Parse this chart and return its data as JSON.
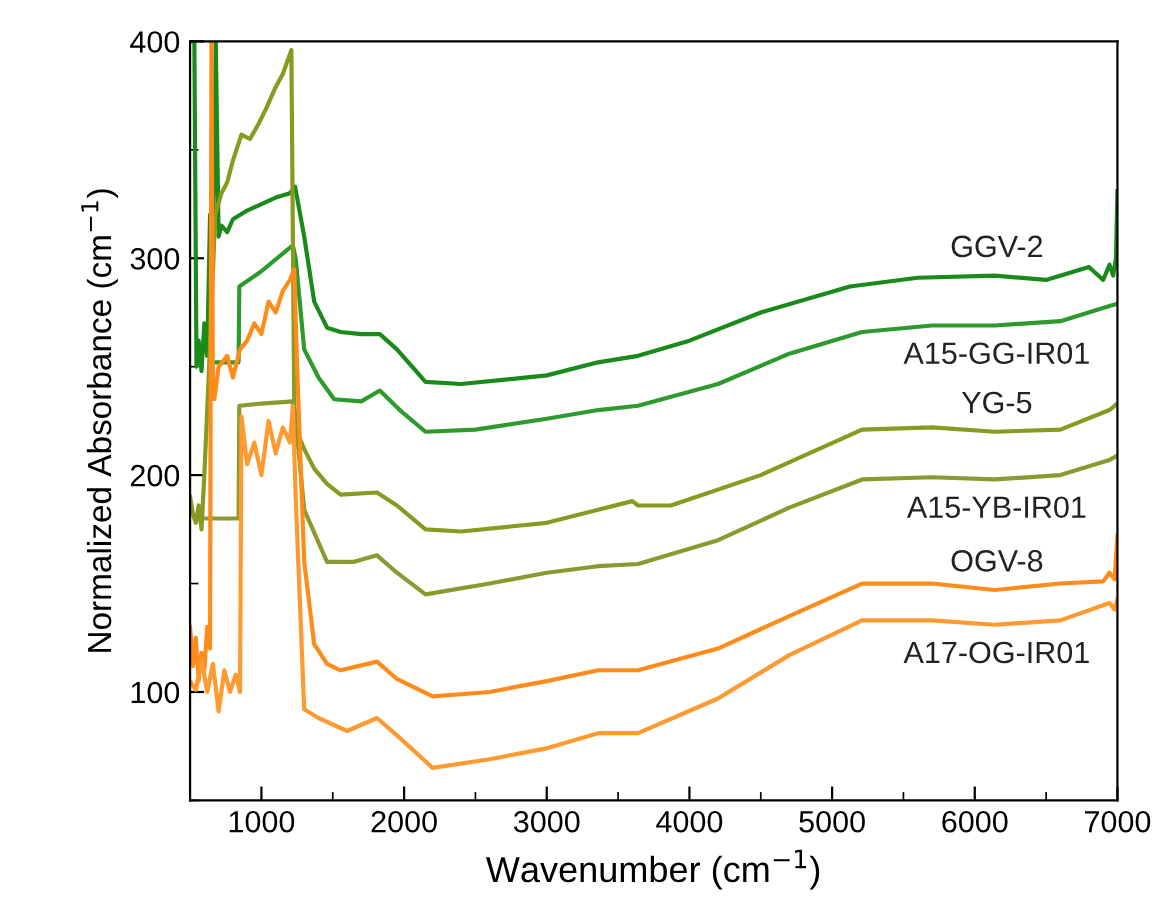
{
  "chart_data": {
    "type": "line",
    "xlabel": "Wavenumber (cm$^{−1}$)",
    "ylabel": "Normalized Absorbance (cm$^{−1}$)",
    "xlim": [
      500,
      7000
    ],
    "ylim": [
      50,
      400
    ],
    "xticks": [
      1000,
      2000,
      3000,
      4000,
      5000,
      6000,
      7000
    ],
    "yticks": [
      100,
      200,
      300,
      400
    ],
    "grid": false,
    "legend": false,
    "marker": "none",
    "line_style": "solid",
    "series": [
      {
        "name": "GGV-2",
        "color": "#1a8a1a",
        "x": [
          500,
          530,
          545,
          560,
          580,
          600,
          620,
          640,
          660,
          680,
          700,
          720,
          760,
          800,
          900,
          1000,
          1100,
          1200,
          1236,
          1300,
          1370,
          1460,
          1555,
          1700,
          1830,
          1950,
          2150,
          2400,
          3000,
          3360,
          3640,
          4000,
          4500,
          5125,
          5600,
          6140,
          6500,
          6800,
          6900,
          6944,
          6970,
          6990,
          7000
        ],
        "values": [
          400,
          400,
          250,
          262,
          248,
          270,
          255,
          320,
          300,
          400,
          310,
          315,
          312,
          318,
          322,
          325,
          328,
          330,
          333,
          310,
          280,
          268,
          266,
          265,
          265,
          258,
          243,
          242,
          246,
          252,
          255,
          262,
          275,
          287,
          291,
          292,
          290,
          296,
          290,
          297,
          292,
          300,
          331
        ]
      },
      {
        "name": "A15-GG-IR01",
        "color": "#2e9a2e",
        "x": [
          650,
          676,
          840,
          845,
          1000,
          1220,
          1240,
          1300,
          1400,
          1510,
          1700,
          1830,
          1970,
          2150,
          2500,
          3000,
          3360,
          3640,
          4200,
          4700,
          5210,
          5700,
          6140,
          6600,
          6944,
          7000
        ],
        "values": [
          252,
          252,
          252,
          287,
          294,
          306,
          300,
          258,
          245,
          235,
          234,
          239,
          230,
          220,
          221,
          226,
          230,
          232,
          242,
          256,
          266,
          269,
          269,
          271,
          278,
          279
        ]
      },
      {
        "name": "YG-5",
        "color": "#8a9a20",
        "x": [
          500,
          520,
          540,
          560,
          580,
          600,
          640,
          676,
          720,
          760,
          800,
          860,
          920,
          980,
          1040,
          1093,
          1150,
          1210,
          1230,
          1250,
          1300,
          1370,
          1460,
          1555,
          1810,
          1950,
          2150,
          2400,
          3000,
          3360,
          3600,
          3640,
          3870,
          4500,
          5210,
          5700,
          6140,
          6600,
          6944,
          7000
        ],
        "values": [
          190,
          182,
          178,
          186,
          175,
          200,
          260,
          320,
          330,
          335,
          345,
          357,
          355,
          362,
          370,
          378,
          385,
          396,
          232,
          220,
          212,
          203,
          196,
          191,
          192,
          186,
          175,
          174,
          178,
          184,
          188,
          186,
          186,
          200,
          221,
          222,
          220,
          221,
          230,
          233
        ]
      },
      {
        "name": "A15-YB-IR01",
        "color": "#8a9a30",
        "x": [
          600,
          840,
          845,
          1000,
          1220,
          1240,
          1300,
          1460,
          1650,
          1810,
          1950,
          2150,
          2600,
          3000,
          3360,
          3640,
          4200,
          4700,
          5210,
          5700,
          6140,
          6600,
          6944,
          7000
        ],
        "values": [
          180,
          180,
          232,
          233,
          234,
          225,
          184,
          160,
          160,
          163,
          155,
          145,
          150,
          155,
          158,
          159,
          170,
          185,
          198,
          199,
          198,
          200,
          207,
          209
        ]
      },
      {
        "name": "OGV-8",
        "color": "#ff8c1a",
        "x": [
          500,
          520,
          540,
          560,
          580,
          600,
          620,
          640,
          650,
          660,
          670,
          700,
          760,
          800,
          850,
          900,
          950,
          1000,
          1050,
          1100,
          1150,
          1200,
          1230,
          1250,
          1300,
          1370,
          1460,
          1555,
          1810,
          1950,
          2200,
          2600,
          3000,
          3360,
          3640,
          4200,
          4700,
          5210,
          5700,
          6140,
          6600,
          6900,
          6944,
          6980,
          7000
        ],
        "values": [
          130,
          112,
          125,
          105,
          118,
          110,
          130,
          120,
          400,
          240,
          235,
          250,
          255,
          245,
          258,
          262,
          270,
          265,
          280,
          275,
          285,
          290,
          295,
          250,
          160,
          122,
          113,
          110,
          114,
          106,
          98,
          100,
          105,
          110,
          110,
          120,
          135,
          150,
          150,
          147,
          150,
          151,
          155,
          152,
          172
        ]
      },
      {
        "name": "A17-OG-IR01",
        "color": "#ff9a30",
        "x": [
          500,
          540,
          580,
          620,
          660,
          700,
          740,
          780,
          820,
          850,
          860,
          900,
          950,
          1000,
          1050,
          1100,
          1150,
          1200,
          1220,
          1240,
          1300,
          1400,
          1600,
          1810,
          1950,
          2200,
          2600,
          3000,
          3360,
          3640,
          4200,
          4700,
          5210,
          5700,
          6140,
          6600,
          6944,
          6980,
          7000
        ],
        "values": [
          105,
          101,
          115,
          100,
          113,
          91,
          110,
          100,
          108,
          100,
          227,
          205,
          215,
          200,
          225,
          210,
          222,
          215,
          232,
          190,
          92,
          88,
          82,
          88,
          80,
          65,
          69,
          74,
          81,
          81,
          97,
          117,
          133,
          133,
          131,
          133,
          141,
          138,
          143
        ]
      }
    ]
  }
}
